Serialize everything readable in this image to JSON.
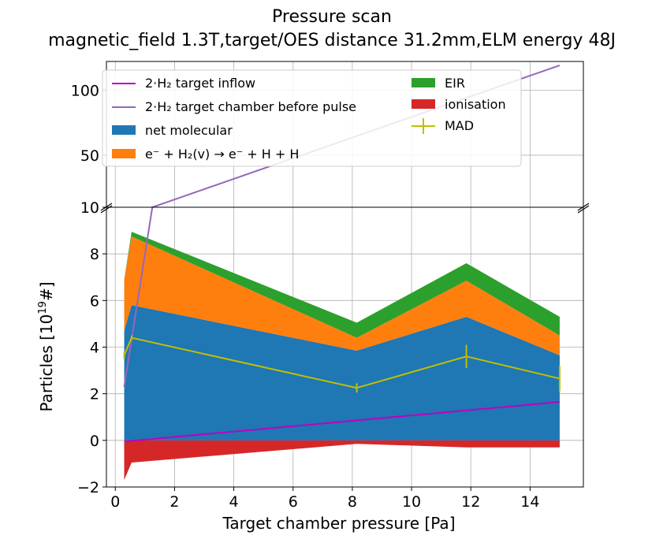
{
  "chart_data": {
    "type": "area",
    "title": "Pressure scan",
    "subtitle": "magnetic_field 1.3T,target/OES distance 31.2mm,ELM energy 48J",
    "xlabel": "Target chamber pressure [Pa]",
    "ylabel": "Particles [10^19 #]",
    "ylabel_parts": {
      "base": "Particles [10",
      "sup": "19",
      "end": "#]"
    },
    "xlim": [
      -0.3,
      15.8
    ],
    "ylim_lower": [
      -2,
      10
    ],
    "ylim_upper": [
      10,
      122
    ],
    "x_ticks": [
      "0",
      "2",
      "4",
      "6",
      "8",
      "10",
      "12",
      "14"
    ],
    "y_ticks_lower": [
      "−2",
      "0",
      "2",
      "4",
      "6",
      "8",
      "10"
    ],
    "y_ticks_upper": [
      "50",
      "100"
    ],
    "grid": true,
    "broken_axis": true,
    "legend_position": "upper panel, two columns",
    "x": [
      0.3,
      0.55,
      8.15,
      11.85,
      15.0
    ],
    "stacked_positive": [
      {
        "name": "net molecular",
        "color": "#1f77b4",
        "values": [
          4.7,
          5.8,
          3.85,
          5.3,
          3.65
        ]
      },
      {
        "name": "e⁻ + H₂(v) → e⁻ + H + H",
        "color": "#ff7f0e",
        "values": [
          2.2,
          2.95,
          0.55,
          1.55,
          0.85
        ]
      },
      {
        "name": "EIR",
        "color": "#2ca02c",
        "values": [
          0.0,
          0.2,
          0.65,
          0.75,
          0.8
        ]
      }
    ],
    "negative": {
      "name": "ionisation",
      "color": "#d62728",
      "values": [
        -1.7,
        -0.95,
        -0.15,
        -0.3,
        -0.3
      ]
    },
    "lines": [
      {
        "name": "2·H₂ target inflow",
        "color": "#bf00bf",
        "x": [
          0.3,
          15.0
        ],
        "values": [
          -0.05,
          1.65
        ]
      },
      {
        "name": "2·H₂ target chamber before pulse",
        "color": "#9467bd",
        "x": [
          0.3,
          1.25,
          15.0
        ],
        "values": [
          2.3,
          10.0,
          119.0
        ]
      }
    ],
    "mad": {
      "name": "MAD",
      "color": "#bfbf00",
      "x": [
        0.3,
        0.55,
        8.15,
        11.85,
        15.0
      ],
      "values": [
        3.65,
        4.4,
        2.25,
        3.6,
        2.65
      ],
      "err": [
        0.15,
        0.1,
        0.2,
        0.5,
        0.55
      ]
    },
    "legend": {
      "col1": [
        {
          "label": "2·H₂ target inflow",
          "kind": "line",
          "color": "#bf00bf"
        },
        {
          "label": "2·H₂ target chamber before pulse",
          "kind": "line",
          "color": "#9467bd"
        },
        {
          "label": "net molecular",
          "kind": "patch",
          "color": "#1f77b4"
        },
        {
          "label": "e⁻ + H₂(v) → e⁻ + H + H",
          "kind": "patch",
          "color": "#ff7f0e"
        }
      ],
      "col2": [
        {
          "label": "EIR",
          "kind": "patch",
          "color": "#2ca02c"
        },
        {
          "label": "ionisation",
          "kind": "patch",
          "color": "#d62728"
        },
        {
          "label": "MAD",
          "kind": "errorbar",
          "color": "#bfbf00"
        }
      ]
    }
  }
}
